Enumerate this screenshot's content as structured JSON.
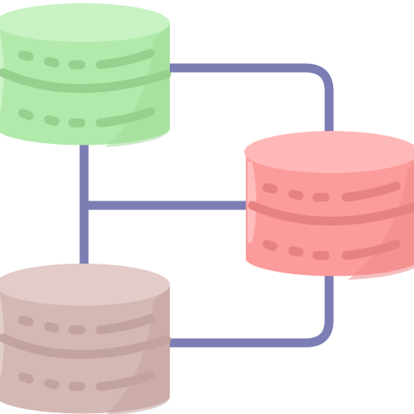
{
  "icon": {
    "name": "distributed-database-network-icon",
    "colors": {
      "connector": "#7C7DB3",
      "db_green": {
        "top": "#C8F2C4",
        "body": "#B1EAAA",
        "shade": "#9EDB97",
        "line": "#97D18F",
        "highlight": "#D7F7D3"
      },
      "db_red": {
        "top": "#FFB8B8",
        "body": "#FC9B9B",
        "shade": "#EE8989",
        "line": "#E78282",
        "highlight": "#FFCBCB"
      },
      "db_rose": {
        "top": "#E3CBC9",
        "body": "#D4B8B3",
        "shade": "#C3A39E",
        "line": "#C2A39E",
        "highlight": "#E8D6D4"
      }
    },
    "databases": [
      {
        "id": "green",
        "label": "database-green"
      },
      {
        "id": "red",
        "label": "database-red"
      },
      {
        "id": "rose",
        "label": "database-rose"
      }
    ]
  }
}
